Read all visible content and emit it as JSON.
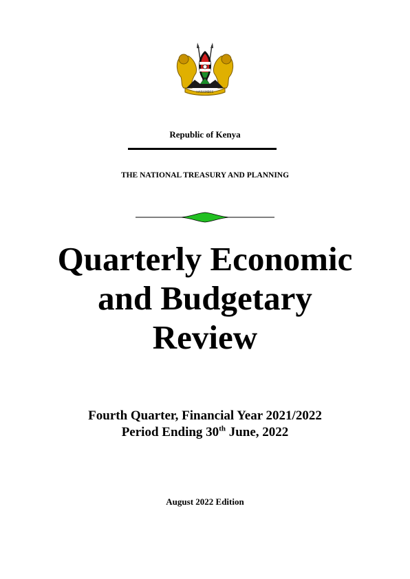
{
  "header": {
    "emblem": "kenya-coat-of-arms-icon",
    "republic": "Republic of Kenya",
    "ministry": "THE NATIONAL TREASURY AND PLANNING"
  },
  "title": {
    "line1": "Quarterly Economic",
    "line2": "and Budgetary",
    "line3": "Review"
  },
  "subtitle": {
    "line1": "Fourth Quarter, Financial Year 2021/2022",
    "line2_prefix": "Period Ending 30",
    "line2_sup": "th",
    "line2_suffix": " June, 2022"
  },
  "edition": "August 2022 Edition",
  "colors": {
    "ornament_fill": "#22c022",
    "shield_red": "#d21f1f",
    "shield_green": "#1a8f2a",
    "lion_gold": "#e0b000"
  }
}
